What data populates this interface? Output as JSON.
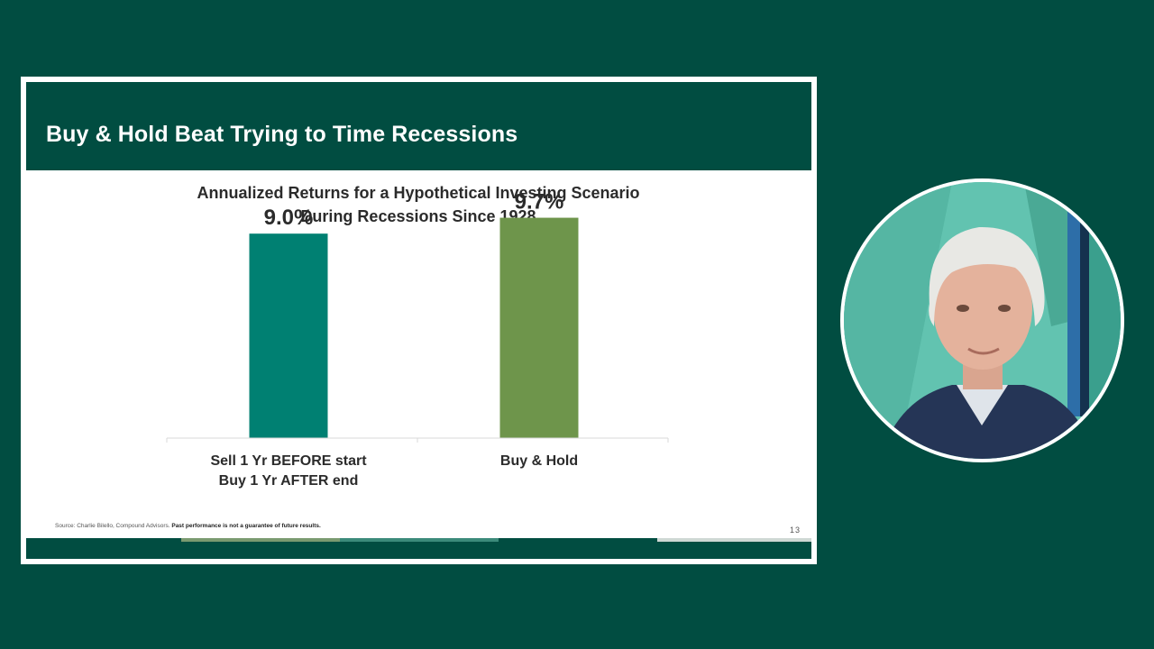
{
  "slide": {
    "title": "Buy & Hold Beat Trying to Time Recessions",
    "source_prefix": "Source:  Charlie Bilello, Compound Advisors.",
    "source_disclaimer": "Past performance is not a guarantee of future results.",
    "page_number": "13"
  },
  "chart_data": {
    "type": "bar",
    "title_lines": [
      "Annualized Returns for a Hypothetical Investing Scenario",
      "During Recessions Since 1928"
    ],
    "categories": [
      [
        "Sell 1 Yr BEFORE start",
        "Buy 1 Yr  AFTER end"
      ],
      [
        "Buy & Hold"
      ]
    ],
    "values": [
      9.0,
      9.7
    ],
    "value_labels": [
      "9.0%",
      "9.7%"
    ],
    "colors": [
      "#008072",
      "#6e954b"
    ],
    "ylim": [
      0,
      10
    ],
    "grid": false
  },
  "colors": {
    "background": "#014d41",
    "header": "#014d41"
  }
}
